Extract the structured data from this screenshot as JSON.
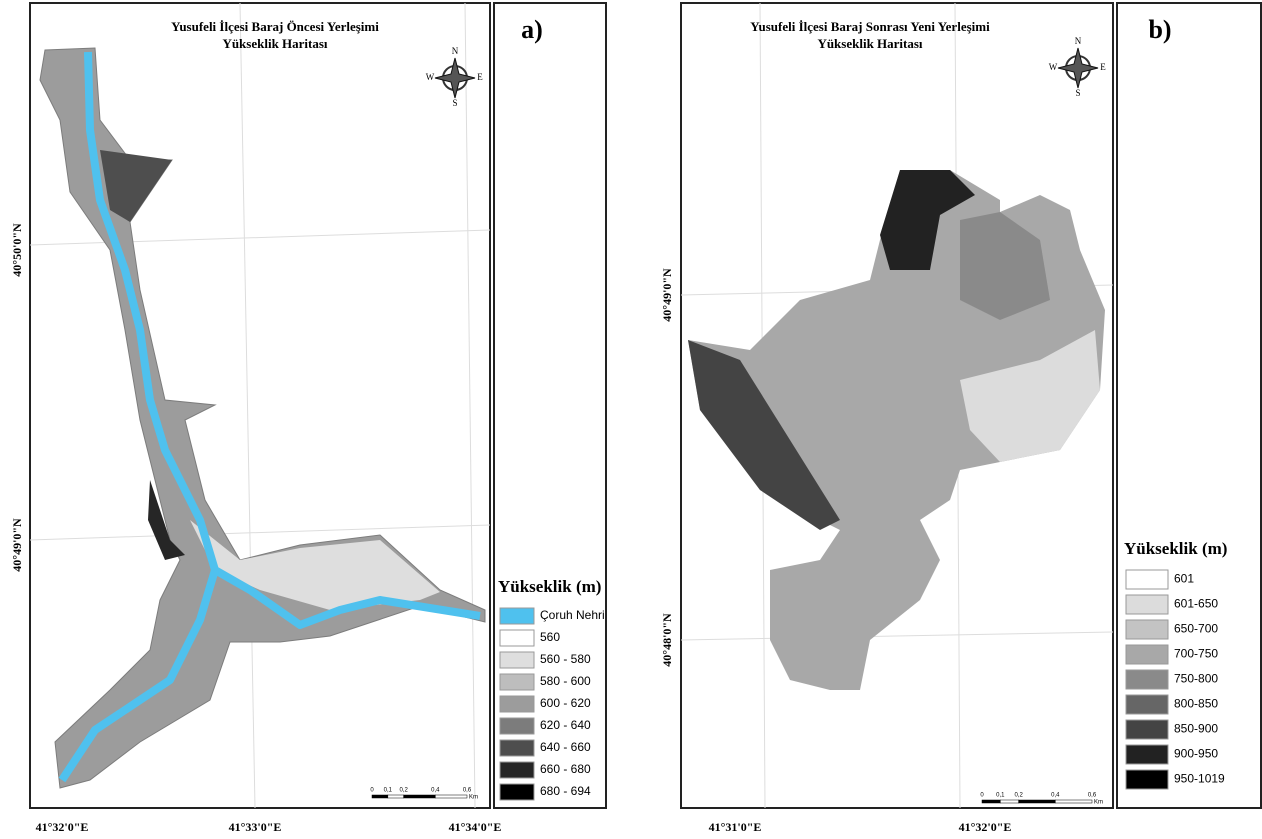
{
  "panels": [
    {
      "label": "a)",
      "title": [
        "Yusufeli İlçesi Baraj Öncesi Yerleşimi",
        "Yükseklik Haritası"
      ],
      "lat_labels": [
        "40°50'0\"N",
        "40°49'0\"N"
      ],
      "lon_labels": [
        "41°32'0\"E",
        "41°33'0\"E",
        "41°34'0\"E"
      ],
      "scale": {
        "ticks": [
          "0",
          "0,1",
          "0,2",
          "0,4",
          "0,6"
        ],
        "unit": "Km"
      },
      "legend": {
        "title": "Yükseklik (m)",
        "items": [
          {
            "label": "Çoruh Nehri",
            "color": "#4fc1ee"
          },
          {
            "label": "560",
            "color": "#ffffff"
          },
          {
            "label": "560 - 580",
            "color": "#dedede"
          },
          {
            "label": "580 - 600",
            "color": "#bdbdbd"
          },
          {
            "label": "600 - 620",
            "color": "#9c9c9c"
          },
          {
            "label": "620 - 640",
            "color": "#7c7c7c"
          },
          {
            "label": "640 - 660",
            "color": "#4e4e4e"
          },
          {
            "label": "660 - 680",
            "color": "#262626"
          },
          {
            "label": "680 - 694",
            "color": "#000000"
          }
        ]
      }
    },
    {
      "label": "b)",
      "title": [
        "Yusufeli İlçesi Baraj Sonrası Yeni Yerleşimi",
        "Yükseklik Haritası"
      ],
      "lat_labels": [
        "40°49'0\"N",
        "40°48'0\"N"
      ],
      "lon_labels": [
        "41°31'0\"E",
        "41°32'0\"E"
      ],
      "scale": {
        "ticks": [
          "0",
          "0,1",
          "0,2",
          "0,4",
          "0,6"
        ],
        "unit": "Km"
      },
      "legend": {
        "title": "Yükseklik (m)",
        "items": [
          {
            "label": "601",
            "color": "#ffffff"
          },
          {
            "label": "601-650",
            "color": "#dcdcdc"
          },
          {
            "label": "650-700",
            "color": "#c3c3c3"
          },
          {
            "label": "700-750",
            "color": "#a8a8a8"
          },
          {
            "label": "750-800",
            "color": "#8a8a8a"
          },
          {
            "label": "800-850",
            "color": "#666666"
          },
          {
            "label": "850-900",
            "color": "#444444"
          },
          {
            "label": "900-950",
            "color": "#222222"
          },
          {
            "label": "950-1019",
            "color": "#000000"
          }
        ]
      }
    }
  ],
  "compass": {
    "n": "N",
    "s": "S",
    "e": "E",
    "w": "W"
  }
}
